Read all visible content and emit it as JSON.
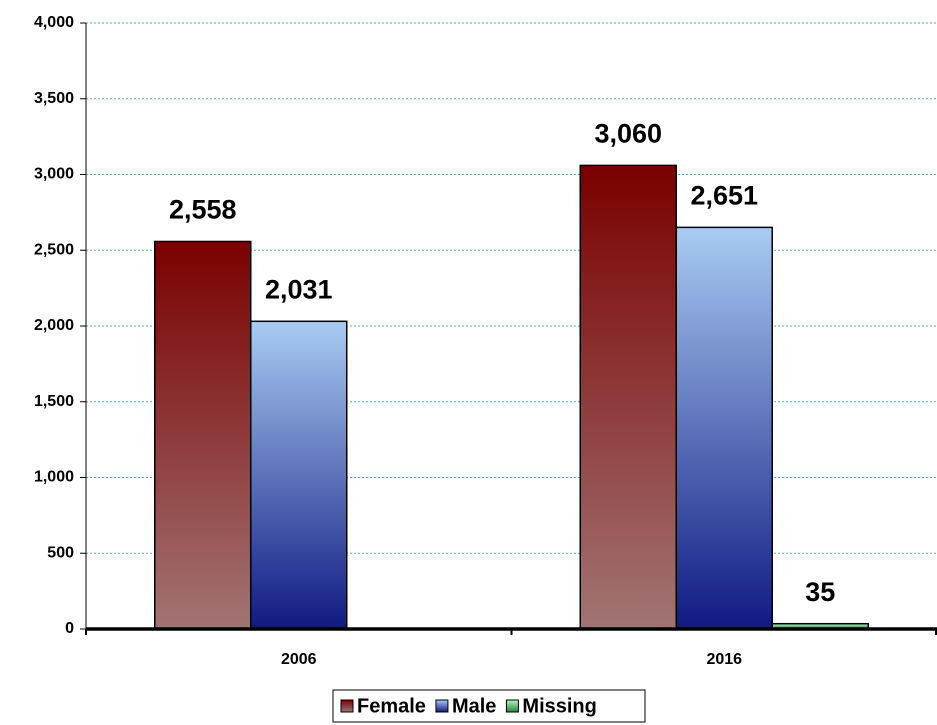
{
  "chart_data": {
    "type": "bar",
    "categories": [
      "2006",
      "2016"
    ],
    "series": [
      {
        "name": "Female",
        "colors": [
          "#7a0000",
          "#a27474"
        ],
        "values": [
          2558,
          3060
        ],
        "value_labels": [
          "2,558",
          "3,060"
        ]
      },
      {
        "name": "Male",
        "colors": [
          "#a9cbf2",
          "#0f1a82"
        ],
        "values": [
          2031,
          2651
        ],
        "value_labels": [
          "2,031",
          "2,651"
        ]
      },
      {
        "name": "Missing",
        "colors": [
          "#b8f0c8",
          "#1f8a3a"
        ],
        "values": [
          null,
          35
        ],
        "value_labels": [
          null,
          "35"
        ]
      }
    ],
    "ylim": [
      0,
      4000
    ],
    "yticks": [
      0,
      500,
      {
        "value": 1000,
        "label": "1,000"
      },
      {
        "value": 1500,
        "label": "1,500"
      },
      {
        "value": 2000,
        "label": "2,000"
      },
      {
        "value": 2500,
        "label": "2,500"
      },
      {
        "value": 3000,
        "label": "3,000"
      },
      {
        "value": 3500,
        "label": "3,500"
      },
      {
        "value": 4000,
        "label": "4,000"
      }
    ],
    "grid": true,
    "legend": "bottom"
  }
}
